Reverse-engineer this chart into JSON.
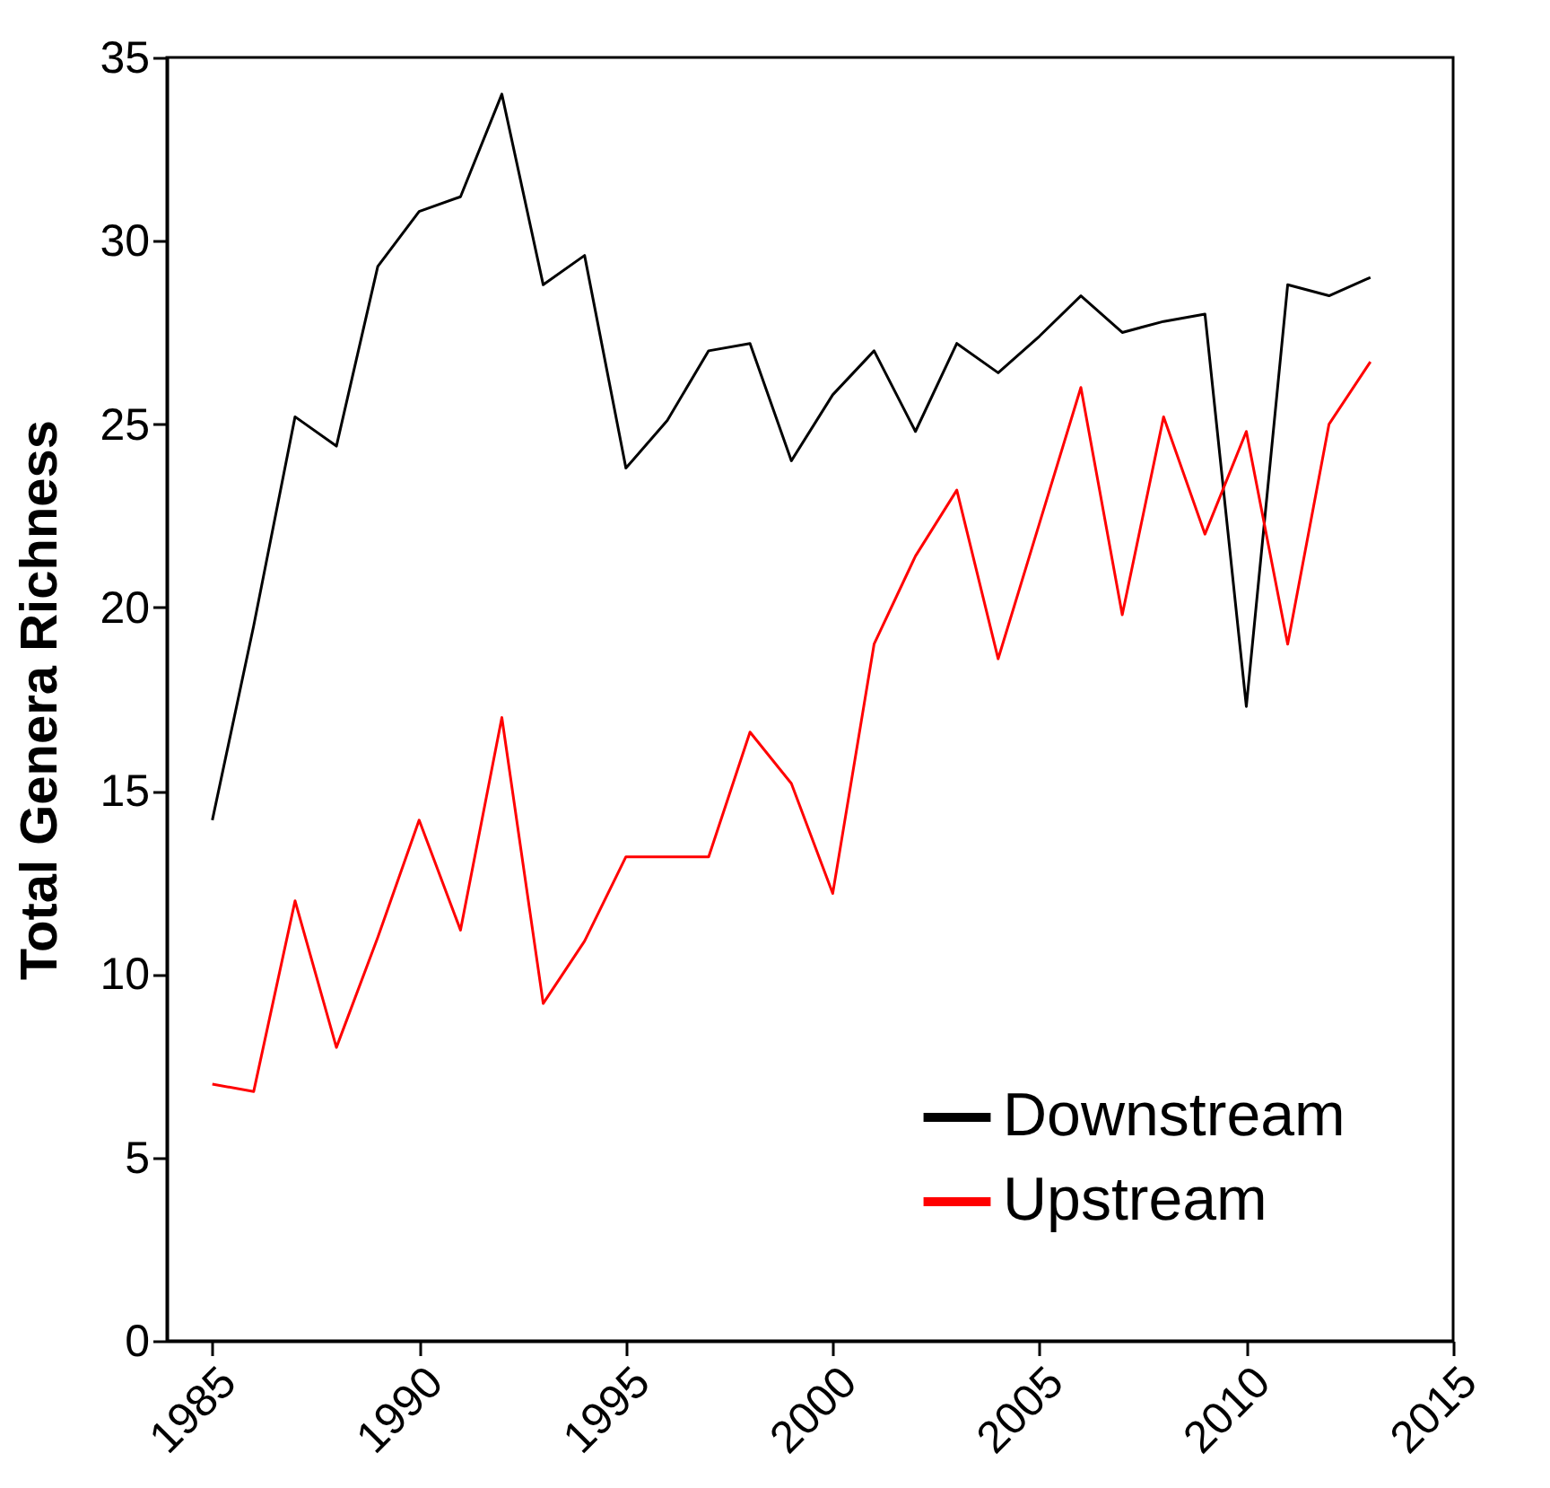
{
  "chart_data": {
    "type": "line",
    "ylabel": "Total Genera Richness",
    "x": [
      1985,
      1986,
      1987,
      1988,
      1989,
      1990,
      1991,
      1992,
      1993,
      1994,
      1995,
      1996,
      1997,
      1998,
      1999,
      2000,
      2001,
      2002,
      2003,
      2004,
      2005,
      2006,
      2007,
      2008,
      2009,
      2010,
      2011,
      2012,
      2013
    ],
    "series": [
      {
        "name": "Downstream",
        "color": "#000000",
        "values": [
          14.2,
          19.5,
          25.2,
          24.4,
          29.3,
          30.8,
          31.2,
          34.0,
          28.8,
          29.6,
          23.8,
          25.1,
          27.0,
          27.2,
          24.0,
          25.8,
          27.0,
          24.8,
          27.2,
          26.4,
          27.4,
          28.5,
          27.5,
          27.8,
          28.0,
          17.3,
          28.8,
          28.5,
          29.0
        ]
      },
      {
        "name": "Upstream",
        "color": "#ff0000",
        "values": [
          7.0,
          6.8,
          12.0,
          8.0,
          11.0,
          14.2,
          11.2,
          17.0,
          9.2,
          10.9,
          13.2,
          13.2,
          13.2,
          16.6,
          15.2,
          12.2,
          19.0,
          21.4,
          23.2,
          18.6,
          22.3,
          26.0,
          19.8,
          25.2,
          22.0,
          24.8,
          19.0,
          25.0,
          26.7
        ]
      }
    ],
    "xlim": [
      1983.9,
      2015
    ],
    "xticks": [
      1985,
      1990,
      1995,
      2000,
      2005,
      2010,
      2015
    ],
    "ylim": [
      0,
      35
    ],
    "yticks": [
      0,
      5,
      10,
      15,
      20,
      25,
      30,
      35
    ],
    "grid": false,
    "legend": "bottom right",
    "marker": "none",
    "line_style": "solid"
  }
}
